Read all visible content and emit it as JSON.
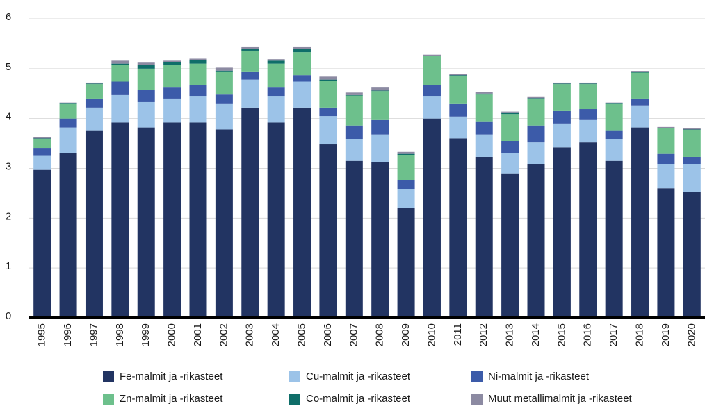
{
  "chart_data": {
    "type": "stacked_bar",
    "categories": [
      "1995",
      "1996",
      "1997",
      "1998",
      "1999",
      "2000",
      "2001",
      "2002",
      "2003",
      "2004",
      "2005",
      "2006",
      "2007",
      "2008",
      "2009",
      "2010",
      "2011",
      "2012",
      "2013",
      "2014",
      "2015",
      "2016",
      "2017",
      "2018",
      "2019",
      "2020"
    ],
    "series": [
      {
        "name": "Fe-malmit ja -rikasteet",
        "color": "#223462",
        "values": [
          2.97,
          3.3,
          3.75,
          3.92,
          3.82,
          3.92,
          3.92,
          3.78,
          4.22,
          3.92,
          4.22,
          3.48,
          3.15,
          3.12,
          2.2,
          4.0,
          3.6,
          3.23,
          2.9,
          3.08,
          3.42,
          3.52,
          3.15,
          3.82,
          2.6,
          2.52
        ]
      },
      {
        "name": "Cu-malmit ja -rikasteet",
        "color": "#9cc3e8",
        "values": [
          0.28,
          0.52,
          0.47,
          0.55,
          0.51,
          0.48,
          0.52,
          0.51,
          0.56,
          0.52,
          0.52,
          0.57,
          0.44,
          0.56,
          0.38,
          0.44,
          0.44,
          0.45,
          0.4,
          0.44,
          0.48,
          0.45,
          0.44,
          0.43,
          0.48,
          0.56
        ]
      },
      {
        "name": "Ni-malmit ja -rikasteet",
        "color": "#3c5ba9",
        "values": [
          0.16,
          0.18,
          0.18,
          0.27,
          0.25,
          0.22,
          0.23,
          0.19,
          0.15,
          0.18,
          0.13,
          0.17,
          0.27,
          0.29,
          0.18,
          0.23,
          0.25,
          0.25,
          0.25,
          0.34,
          0.25,
          0.22,
          0.16,
          0.15,
          0.21,
          0.15
        ]
      },
      {
        "name": "Zn-malmit ja -rikasteet",
        "color": "#6dc08c",
        "values": [
          0.18,
          0.29,
          0.29,
          0.34,
          0.42,
          0.45,
          0.43,
          0.45,
          0.43,
          0.48,
          0.46,
          0.53,
          0.6,
          0.58,
          0.51,
          0.58,
          0.56,
          0.55,
          0.54,
          0.54,
          0.54,
          0.5,
          0.54,
          0.52,
          0.51,
          0.54
        ]
      },
      {
        "name": "Co-malmit ja -rikasteet",
        "color": "#0f6e69",
        "values": [
          0.01,
          0.01,
          0.01,
          0.02,
          0.08,
          0.06,
          0.07,
          0.03,
          0.04,
          0.06,
          0.07,
          0.03,
          0.01,
          0.01,
          0.02,
          0.01,
          0.02,
          0.02,
          0.02,
          0.01,
          0.01,
          0.01,
          0.01,
          0.01,
          0.01,
          0.01
        ]
      },
      {
        "name": "Muut metallimalmit ja -rikasteet",
        "color": "#8c8aa2",
        "values": [
          0.02,
          0.02,
          0.02,
          0.06,
          0.04,
          0.03,
          0.03,
          0.06,
          0.03,
          0.03,
          0.03,
          0.06,
          0.05,
          0.06,
          0.04,
          0.02,
          0.03,
          0.03,
          0.03,
          0.02,
          0.02,
          0.02,
          0.02,
          0.02,
          0.02,
          0.02
        ]
      }
    ],
    "ylim": [
      0,
      6
    ],
    "yticks": [
      0,
      1,
      2,
      3,
      4,
      5,
      6
    ],
    "grid": true,
    "legend": "bottom"
  }
}
